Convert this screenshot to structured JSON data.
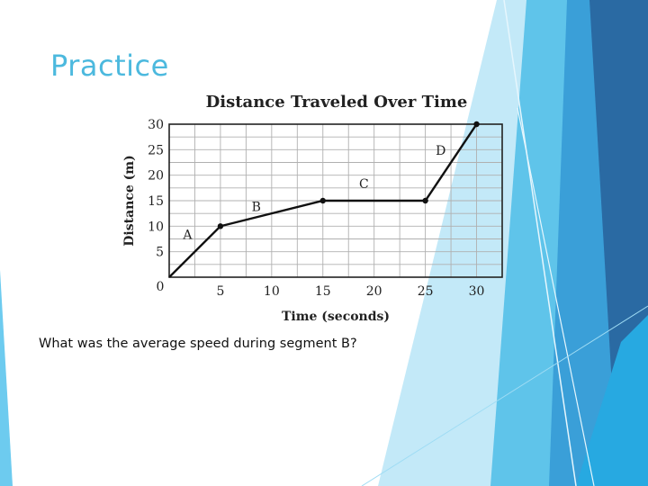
{
  "slide": {
    "title": "Practice",
    "question": "What was the average speed during segment B?",
    "title_color": "#4cb9de"
  },
  "chart_data": {
    "type": "line",
    "title": "Distance Traveled Over Time",
    "xlabel": "Time (seconds)",
    "ylabel": "Distance (m)",
    "x": [
      0,
      5,
      15,
      25,
      30
    ],
    "y": [
      0,
      10,
      15,
      15,
      30
    ],
    "xlim": [
      0,
      32.5
    ],
    "ylim": [
      0,
      30
    ],
    "xticks": [
      0,
      5,
      10,
      15,
      20,
      25,
      30
    ],
    "yticks": [
      5,
      10,
      15,
      20,
      25,
      30
    ],
    "grid": true,
    "segments": [
      {
        "label": "A",
        "at": [
          1.8,
          7.5
        ]
      },
      {
        "label": "B",
        "at": [
          8.5,
          13
        ]
      },
      {
        "label": "C",
        "at": [
          19,
          17.5
        ]
      },
      {
        "label": "D",
        "at": [
          26.5,
          24
        ]
      }
    ]
  }
}
